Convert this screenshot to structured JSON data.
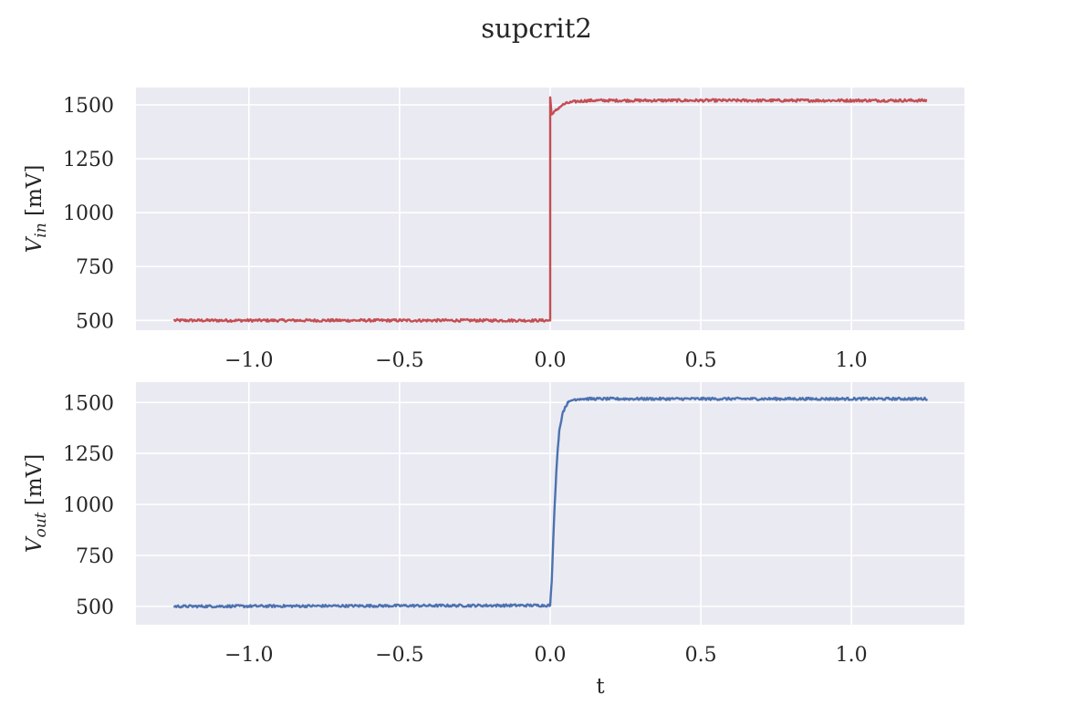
{
  "figure": {
    "title": "supcrit2",
    "facecolor": "#eaeaf2",
    "grid_color": "#ffffff"
  },
  "chart_data": [
    {
      "type": "line",
      "title": "",
      "xlabel": "",
      "ylabel": "V_in [mV]",
      "ylabel_parts": {
        "main": "V",
        "sub": "in",
        "unit": " [mV]"
      },
      "xlim": [
        -1.375,
        1.375
      ],
      "ylim": [
        455,
        1580
      ],
      "xticks": [
        -1.0,
        -0.5,
        0.0,
        0.5,
        1.0
      ],
      "xtick_labels": [
        "−1.0",
        "−0.5",
        "0.0",
        "0.5",
        "1.0"
      ],
      "yticks": [
        500,
        750,
        1000,
        1250,
        1500
      ],
      "ytick_labels": [
        "500",
        "750",
        "1000",
        "1250",
        "1500"
      ],
      "grid": true,
      "series": [
        {
          "color": "#c44e52",
          "x": [
            -1.25,
            0.0,
            0.0,
            0.005,
            0.01,
            0.02,
            0.03,
            0.04,
            0.05,
            0.07,
            0.09,
            0.12,
            0.15,
            1.25
          ],
          "y": [
            500,
            500,
            1535,
            1455,
            1460,
            1475,
            1488,
            1498,
            1505,
            1512,
            1516,
            1519,
            1520,
            1520
          ],
          "noise_amplitude": 6
        }
      ]
    },
    {
      "type": "line",
      "title": "",
      "xlabel": "t",
      "ylabel": "V_out [mV]",
      "ylabel_parts": {
        "main": "V",
        "sub": "out",
        "unit": " [mV]"
      },
      "xlim": [
        -1.375,
        1.375
      ],
      "ylim": [
        410,
        1600
      ],
      "xticks": [
        -1.0,
        -0.5,
        0.0,
        0.5,
        1.0
      ],
      "xtick_labels": [
        "−1.0",
        "−0.5",
        "0.0",
        "0.5",
        "1.0"
      ],
      "yticks": [
        500,
        750,
        1000,
        1250,
        1500
      ],
      "ytick_labels": [
        "500",
        "750",
        "1000",
        "1250",
        "1500"
      ],
      "grid": true,
      "series": [
        {
          "color": "#4c72b0",
          "x": [
            -1.25,
            0.0,
            0.005,
            0.01,
            0.015,
            0.02,
            0.025,
            0.03,
            0.04,
            0.05,
            0.06,
            0.07,
            0.08,
            0.1,
            0.12,
            1.25
          ],
          "y": [
            500,
            505,
            620,
            820,
            1000,
            1150,
            1270,
            1360,
            1440,
            1480,
            1500,
            1510,
            1515,
            1518,
            1518,
            1518
          ],
          "noise_amplitude": 6
        }
      ]
    }
  ]
}
